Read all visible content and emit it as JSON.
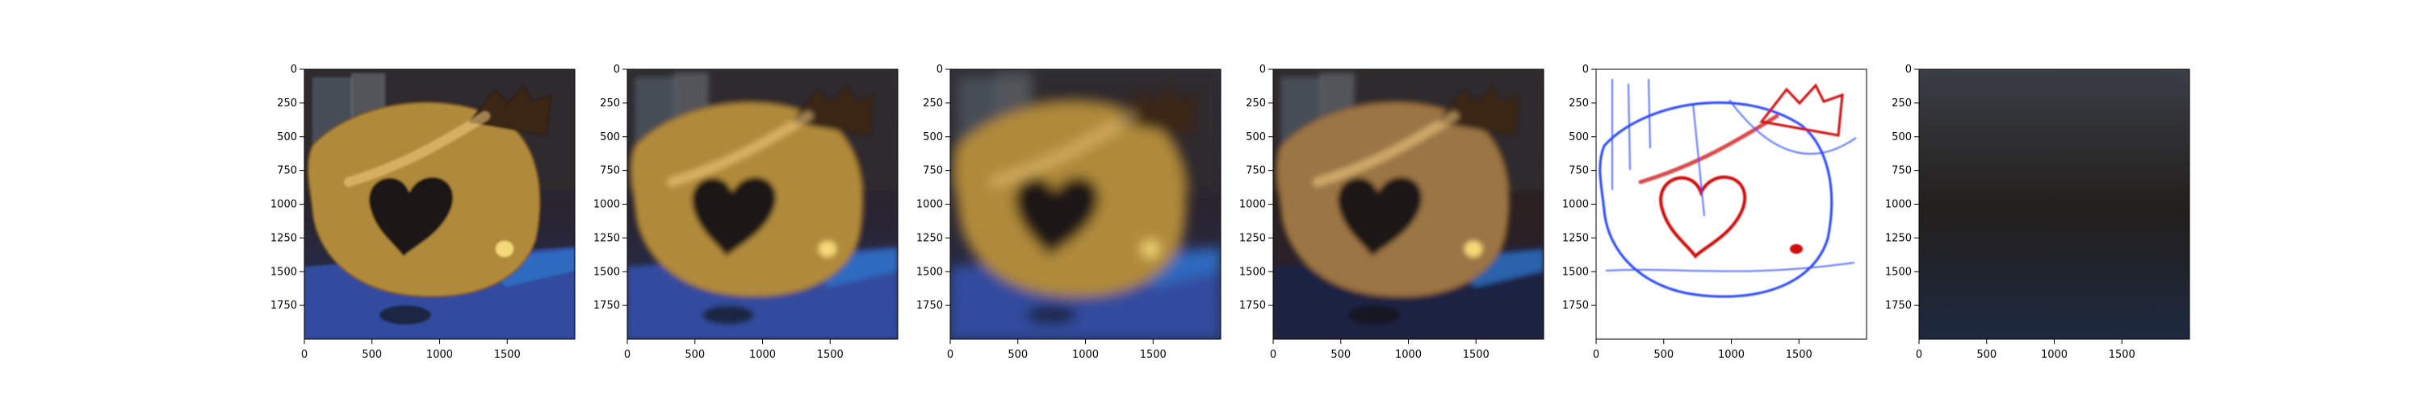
{
  "figure": {
    "panel_count": 6,
    "panels": [
      {
        "style": "dark",
        "blur": 1.2,
        "x_ticks": [
          "0",
          "500",
          "1000",
          "1500"
        ],
        "y_ticks": [
          "0",
          "250",
          "500",
          "750",
          "1000",
          "1250",
          "1500",
          "1750"
        ]
      },
      {
        "style": "blur",
        "blur": 3.2,
        "x_ticks": [
          "0",
          "500",
          "1000",
          "1500"
        ],
        "y_ticks": [
          "0",
          "250",
          "500",
          "750",
          "1000",
          "1250",
          "1500",
          "1750"
        ]
      },
      {
        "style": "very-blur",
        "blur": 7.5,
        "x_ticks": [
          "0",
          "500",
          "1000",
          "1500"
        ],
        "y_ticks": [
          "0",
          "250",
          "500",
          "750",
          "1000",
          "1250",
          "1500",
          "1750"
        ]
      },
      {
        "style": "red-blur",
        "blur": 3.2,
        "x_ticks": [
          "0",
          "500",
          "1000",
          "1500"
        ],
        "y_ticks": [
          "0",
          "250",
          "500",
          "750",
          "1000",
          "1250",
          "1500",
          "1750"
        ]
      },
      {
        "style": "edge-map",
        "blur": 0.7,
        "x_ticks": [
          "0",
          "500",
          "1000",
          "1500"
        ],
        "y_ticks": [
          "0",
          "250",
          "500",
          "750",
          "1000",
          "1250",
          "1500",
          "1750"
        ]
      },
      {
        "style": "sharp",
        "blur": 0,
        "x_ticks": [
          "0",
          "500",
          "1000",
          "1500"
        ],
        "y_ticks": [
          "0",
          "250",
          "500",
          "750",
          "1000",
          "1250",
          "1500",
          "1750"
        ]
      }
    ],
    "axis_range": {
      "x": [
        0,
        2000
      ],
      "y": [
        2000,
        0
      ]
    },
    "colors": {
      "background": "#ffffff",
      "toy_yellow": "#b08a3a",
      "toy_dark": "#3b2516",
      "floor_blue": "#314b9f",
      "edge_red": "#d10e0e",
      "edge_blue": "#2a48ff"
    }
  }
}
